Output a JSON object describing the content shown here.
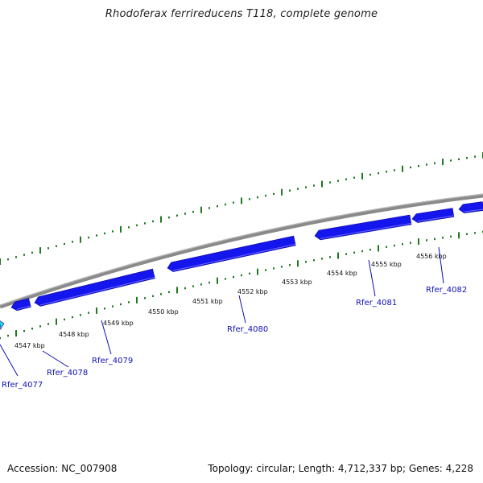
{
  "title": "Rhodoferax ferrireducens T118, complete genome",
  "footer": {
    "accession": "Accession: NC_007908",
    "stats": "Topology: circular; Length: 4,712,337 bp; Genes: 4,228"
  },
  "kbp_labels": [
    "4547 kbp",
    "4548 kbp",
    "4549 kbp",
    "4550 kbp",
    "4551 kbp",
    "4552 kbp",
    "4553 kbp",
    "4554 kbp",
    "4555 kbp",
    "4556 kbp"
  ],
  "gene_labels": [
    "Rfer_4077",
    "Rfer_4078",
    "Rfer_4079",
    "Rfer_4080",
    "Rfer_4081",
    "Rfer_4082"
  ],
  "colors": {
    "gene": "#1515ee",
    "gene_highlight": "#22dddd",
    "backbone": "#8a8a8a",
    "tick": "#1f7a1f",
    "label": "#1010b8"
  }
}
